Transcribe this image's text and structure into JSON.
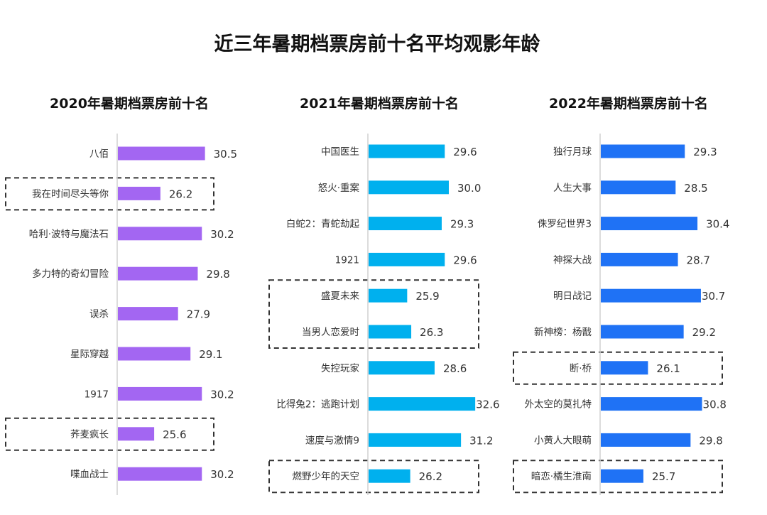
{
  "chart_data": {
    "title": "近三年暑期档票房前十名平均观影年龄",
    "charts": [
      {
        "type": "bar",
        "orientation": "horizontal",
        "title": "2020年暑期档票房前十名",
        "color": "#a366f2",
        "categories": [
          "八佰",
          "我在时间尽头等你",
          "哈利·波特与魔法石",
          "多力特的奇幻冒险",
          "误杀",
          "星际穿越",
          "1917",
          "荞麦疯长",
          "喋血战士"
        ],
        "values": [
          30.5,
          26.2,
          30.2,
          29.8,
          27.9,
          29.1,
          30.2,
          25.6,
          30.2
        ],
        "highlighted": [
          false,
          true,
          false,
          false,
          false,
          false,
          false,
          true,
          false
        ]
      },
      {
        "type": "bar",
        "orientation": "horizontal",
        "title": "2021年暑期档票房前十名",
        "color": "#00b0ee",
        "categories": [
          "中国医生",
          "怒火·重案",
          "白蛇2：青蛇劫起",
          "1921",
          "盛夏未来",
          "当男人恋爱时",
          "失控玩家",
          "比得兔2：逃跑计划",
          "速度与激情9",
          "燃野少年的天空"
        ],
        "values": [
          29.6,
          30.0,
          29.3,
          29.6,
          25.9,
          26.3,
          28.6,
          32.6,
          31.2,
          26.2
        ],
        "highlighted": [
          false,
          false,
          false,
          false,
          true,
          true,
          false,
          false,
          false,
          true
        ]
      },
      {
        "type": "bar",
        "orientation": "horizontal",
        "title": "2022年暑期档票房前十名",
        "color": "#1f72f5",
        "categories": [
          "独行月球",
          "人生大事",
          "侏罗纪世界3",
          "神探大战",
          "明日战记",
          "新神榜：杨戬",
          "断·桥",
          "外太空的莫扎特",
          "小黄人大眼萌",
          "暗恋·橘生淮南"
        ],
        "values": [
          29.3,
          28.5,
          30.4,
          28.7,
          30.7,
          29.2,
          26.1,
          30.8,
          29.8,
          25.7
        ],
        "highlighted": [
          false,
          false,
          false,
          false,
          false,
          false,
          true,
          false,
          false,
          true
        ]
      }
    ]
  }
}
